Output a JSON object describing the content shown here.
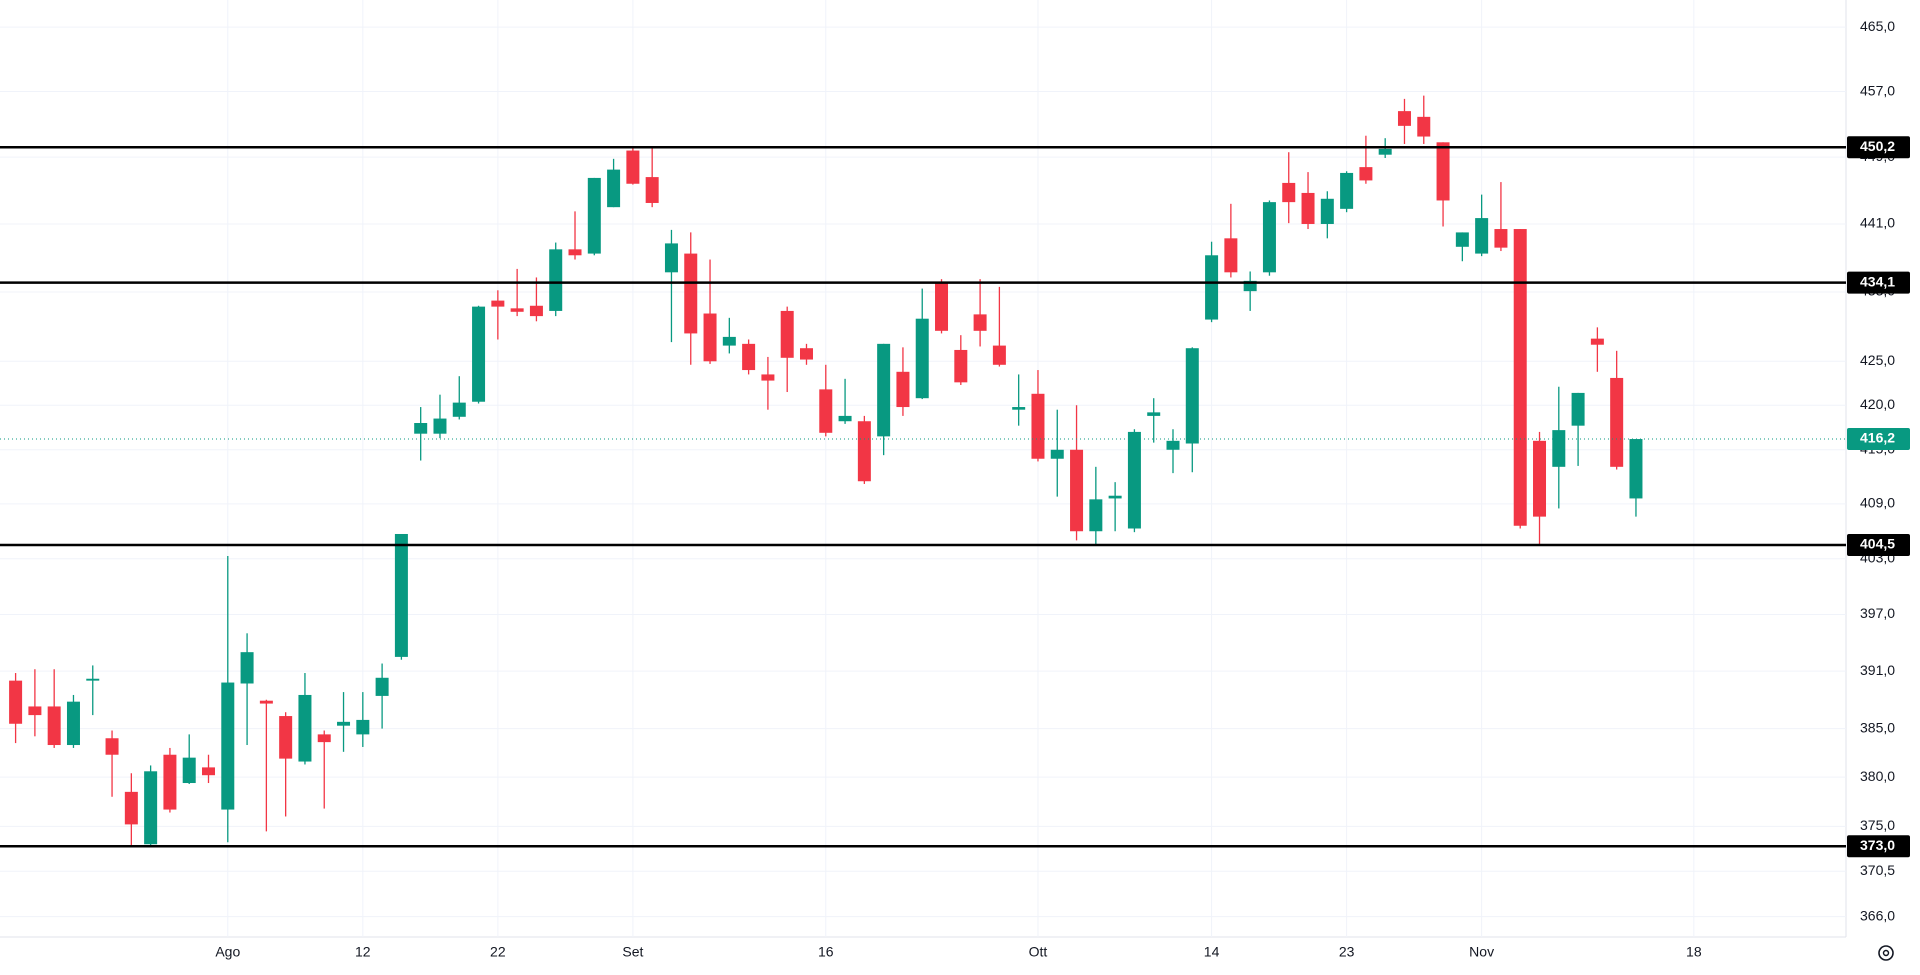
{
  "chart_data": {
    "type": "candlestick",
    "categories": [
      null,
      null,
      null,
      null,
      null,
      null,
      null,
      null,
      null,
      null,
      null,
      "Ago",
      null,
      null,
      null,
      null,
      null,
      null,
      "12",
      null,
      null,
      null,
      null,
      null,
      null,
      "22",
      null,
      null,
      null,
      null,
      null,
      null,
      "Set",
      null,
      null,
      null,
      null,
      null,
      null,
      null,
      null,
      null,
      "16",
      null,
      null,
      null,
      null,
      null,
      null,
      null,
      null,
      null,
      null,
      "Ott",
      null,
      null,
      null,
      null,
      null,
      null,
      null,
      null,
      "14",
      null,
      null,
      null,
      null,
      null,
      null,
      "23",
      null,
      null,
      null,
      null,
      null,
      null,
      "Nov",
      null,
      null,
      null,
      null,
      null,
      null,
      null,
      null,
      null,
      null,
      "18"
    ],
    "open": [
      390,
      387.3,
      387.3,
      383.3,
      390,
      384,
      378.5,
      373.2,
      382.3,
      379.4,
      381,
      376.7,
      389.7,
      387.9,
      386.3,
      381.6,
      384.4,
      385.3,
      384.4,
      388.4,
      392.5,
      416.8,
      416.8,
      418.7,
      420.4,
      432,
      431.1,
      431.4,
      430.8,
      438,
      437.5,
      443,
      449.8,
      446.6,
      435.3,
      437.5,
      430.5,
      426.8,
      427,
      423.5,
      430.8,
      426.5,
      421.8,
      418.2,
      418.2,
      416.5,
      423.8,
      420.8,
      434,
      426.3,
      430.4,
      426.8,
      419.5,
      421.3,
      414,
      415,
      406,
      409.6,
      406.3,
      418.8,
      415,
      415.7,
      429.8,
      439.3,
      433.1,
      435.3,
      445.9,
      444.7,
      441,
      442.8,
      447.8,
      449.3,
      454.6,
      453.9,
      450.8,
      438.3,
      437.5,
      440.4,
      440.4,
      416,
      413.1,
      417.7,
      427.6,
      423.1,
      409.6,
      null,
      null,
      null
    ],
    "high": [
      390.8,
      391.2,
      391.2,
      388.5,
      391.6,
      384.8,
      380.4,
      381.2,
      383,
      384.4,
      382.3,
      403.3,
      395,
      388,
      386.7,
      390.8,
      384.8,
      388.8,
      388.8,
      391.8,
      405.7,
      419.8,
      421.2,
      423.3,
      431.4,
      433.2,
      435.7,
      434.7,
      438.8,
      442.5,
      446.5,
      448.8,
      450.2,
      450.3,
      440.3,
      440,
      436.8,
      430,
      427.5,
      425.5,
      431.3,
      427,
      424.6,
      423,
      418.8,
      427,
      426.6,
      433.4,
      434.5,
      428,
      434.5,
      433.6,
      423.5,
      424,
      419.5,
      420,
      413.1,
      411.4,
      417.3,
      420.8,
      417.3,
      426.6,
      438.9,
      443.4,
      435.4,
      443.8,
      449.6,
      447.2,
      444.9,
      447.3,
      451.6,
      451.3,
      456.1,
      456.5,
      450.8,
      440,
      444.5,
      446,
      440.4,
      417,
      422.1,
      421.4,
      428.9,
      426.2,
      416.2,
      null,
      null,
      null
    ],
    "low": [
      383.5,
      384.2,
      383,
      383,
      386.4,
      378,
      373,
      373,
      376.4,
      379.3,
      379.4,
      373.4,
      383.3,
      374.5,
      376,
      381.3,
      376.8,
      382.6,
      383.1,
      385,
      392.2,
      413.8,
      416.3,
      418.4,
      420.2,
      427.5,
      430.2,
      429.6,
      430.2,
      436.8,
      437.3,
      443,
      445.7,
      443,
      427.2,
      424.6,
      424.7,
      425.9,
      423.5,
      419.5,
      421.5,
      424.6,
      416.5,
      417.9,
      411.2,
      414.4,
      418.8,
      420.7,
      428.2,
      422.3,
      426.7,
      424.4,
      417.7,
      413.7,
      409.8,
      405,
      404.4,
      406,
      405.9,
      415.8,
      412.4,
      412.5,
      429.5,
      434.7,
      430.8,
      434.9,
      441.1,
      440.4,
      439.3,
      442.4,
      445.8,
      448.9,
      450.6,
      450.6,
      440.7,
      436.6,
      437.2,
      437.8,
      406.3,
      404.5,
      408.5,
      413.2,
      423.8,
      412.8,
      407.6,
      null,
      null,
      null
    ],
    "close": [
      385.5,
      386.4,
      383.3,
      387.8,
      390.2,
      382.3,
      375.2,
      380.6,
      376.7,
      382,
      380.2,
      389.8,
      393,
      387.6,
      381.9,
      388.5,
      383.6,
      385.7,
      385.9,
      390.3,
      405.7,
      418,
      418.5,
      420.3,
      431.3,
      431.3,
      430.7,
      430.2,
      438,
      437.3,
      446.5,
      447.5,
      445.8,
      443.5,
      438.7,
      428.2,
      425,
      427.8,
      424,
      422.8,
      425.4,
      425.2,
      416.9,
      418.8,
      411.5,
      427,
      419.8,
      429.9,
      428.5,
      422.6,
      428.5,
      424.6,
      419.8,
      414,
      415,
      406,
      409.5,
      409.9,
      417,
      419.2,
      416,
      426.5,
      437.3,
      435.3,
      434.3,
      443.6,
      443.6,
      441,
      444,
      447.1,
      446.2,
      450,
      452.8,
      451.5,
      443.8,
      440,
      441.7,
      438.2,
      406.6,
      407.6,
      417.2,
      421.4,
      426.9,
      413.1,
      416.2,
      null,
      null,
      null
    ],
    "up_color": "#089981",
    "down_color": "#f23645",
    "log_scale": true,
    "grid": true,
    "ylim": [
      364,
      468.4
    ],
    "yticks": [
      {
        "value": 465,
        "label": "465,0"
      },
      {
        "value": 457,
        "label": "457,0"
      },
      {
        "value": 449,
        "label": "449,0"
      },
      {
        "value": 441,
        "label": "441,0"
      },
      {
        "value": 433,
        "label": "433,0"
      },
      {
        "value": 425,
        "label": "425,0"
      },
      {
        "value": 420,
        "label": "420,0"
      },
      {
        "value": 415,
        "label": "415,0"
      },
      {
        "value": 409,
        "label": "409,0"
      },
      {
        "value": 403,
        "label": "403,0"
      },
      {
        "value": 397,
        "label": "397,0"
      },
      {
        "value": 391,
        "label": "391,0"
      },
      {
        "value": 385,
        "label": "385,0"
      },
      {
        "value": 380,
        "label": "380,0"
      },
      {
        "value": 375,
        "label": "375,0"
      },
      {
        "value": 370.5,
        "label": "370,5"
      },
      {
        "value": 366,
        "label": "366,0"
      }
    ],
    "horizontal_lines": [
      {
        "value": 450.2,
        "label": "450,2"
      },
      {
        "value": 434.1,
        "label": "434,1"
      },
      {
        "value": 404.5,
        "label": "404,5"
      },
      {
        "value": 373,
        "label": "373,0"
      }
    ],
    "last_price": {
      "value": 416.2,
      "label": "416,2"
    }
  }
}
